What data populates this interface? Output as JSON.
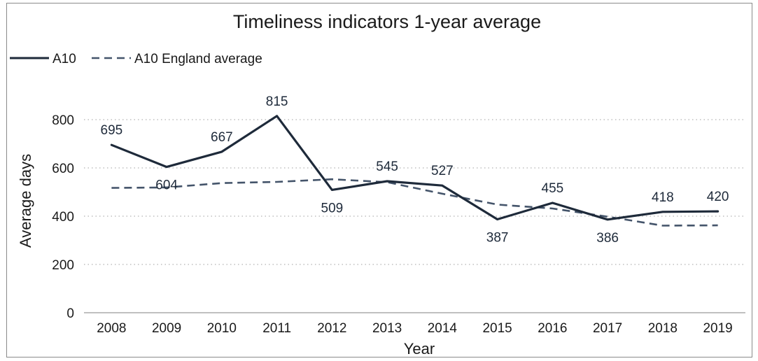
{
  "chart_data": {
    "type": "line",
    "title": "Timeliness indicators 1-year average",
    "xlabel": "Year",
    "ylabel": "Average days",
    "ylim": [
      0,
      800
    ],
    "yticks": [
      0,
      200,
      400,
      600,
      800
    ],
    "grid": true,
    "legend_position": "top-left",
    "x": [
      "2008",
      "2009",
      "2010",
      "2011",
      "2012",
      "2013",
      "2014",
      "2015",
      "2016",
      "2017",
      "2018",
      "2019"
    ],
    "series": [
      {
        "name": "A10",
        "style": "solid",
        "color": "#1e2a3a",
        "values": [
          695,
          604,
          667,
          815,
          509,
          545,
          527,
          387,
          455,
          386,
          418,
          420
        ],
        "labels": [
          "695",
          "604",
          "667",
          "815",
          "509",
          "545",
          "527",
          "387",
          "455",
          "386",
          "418",
          "420"
        ],
        "label_positions": [
          "above",
          "below",
          "above",
          "above",
          "below",
          "above",
          "above",
          "below",
          "above",
          "below",
          "above",
          "above"
        ]
      },
      {
        "name": "A10 England average",
        "style": "dashed",
        "color": "#44546a",
        "values": [
          517,
          519,
          537,
          542,
          553,
          541,
          493,
          448,
          432,
          398,
          361,
          362
        ]
      }
    ]
  }
}
